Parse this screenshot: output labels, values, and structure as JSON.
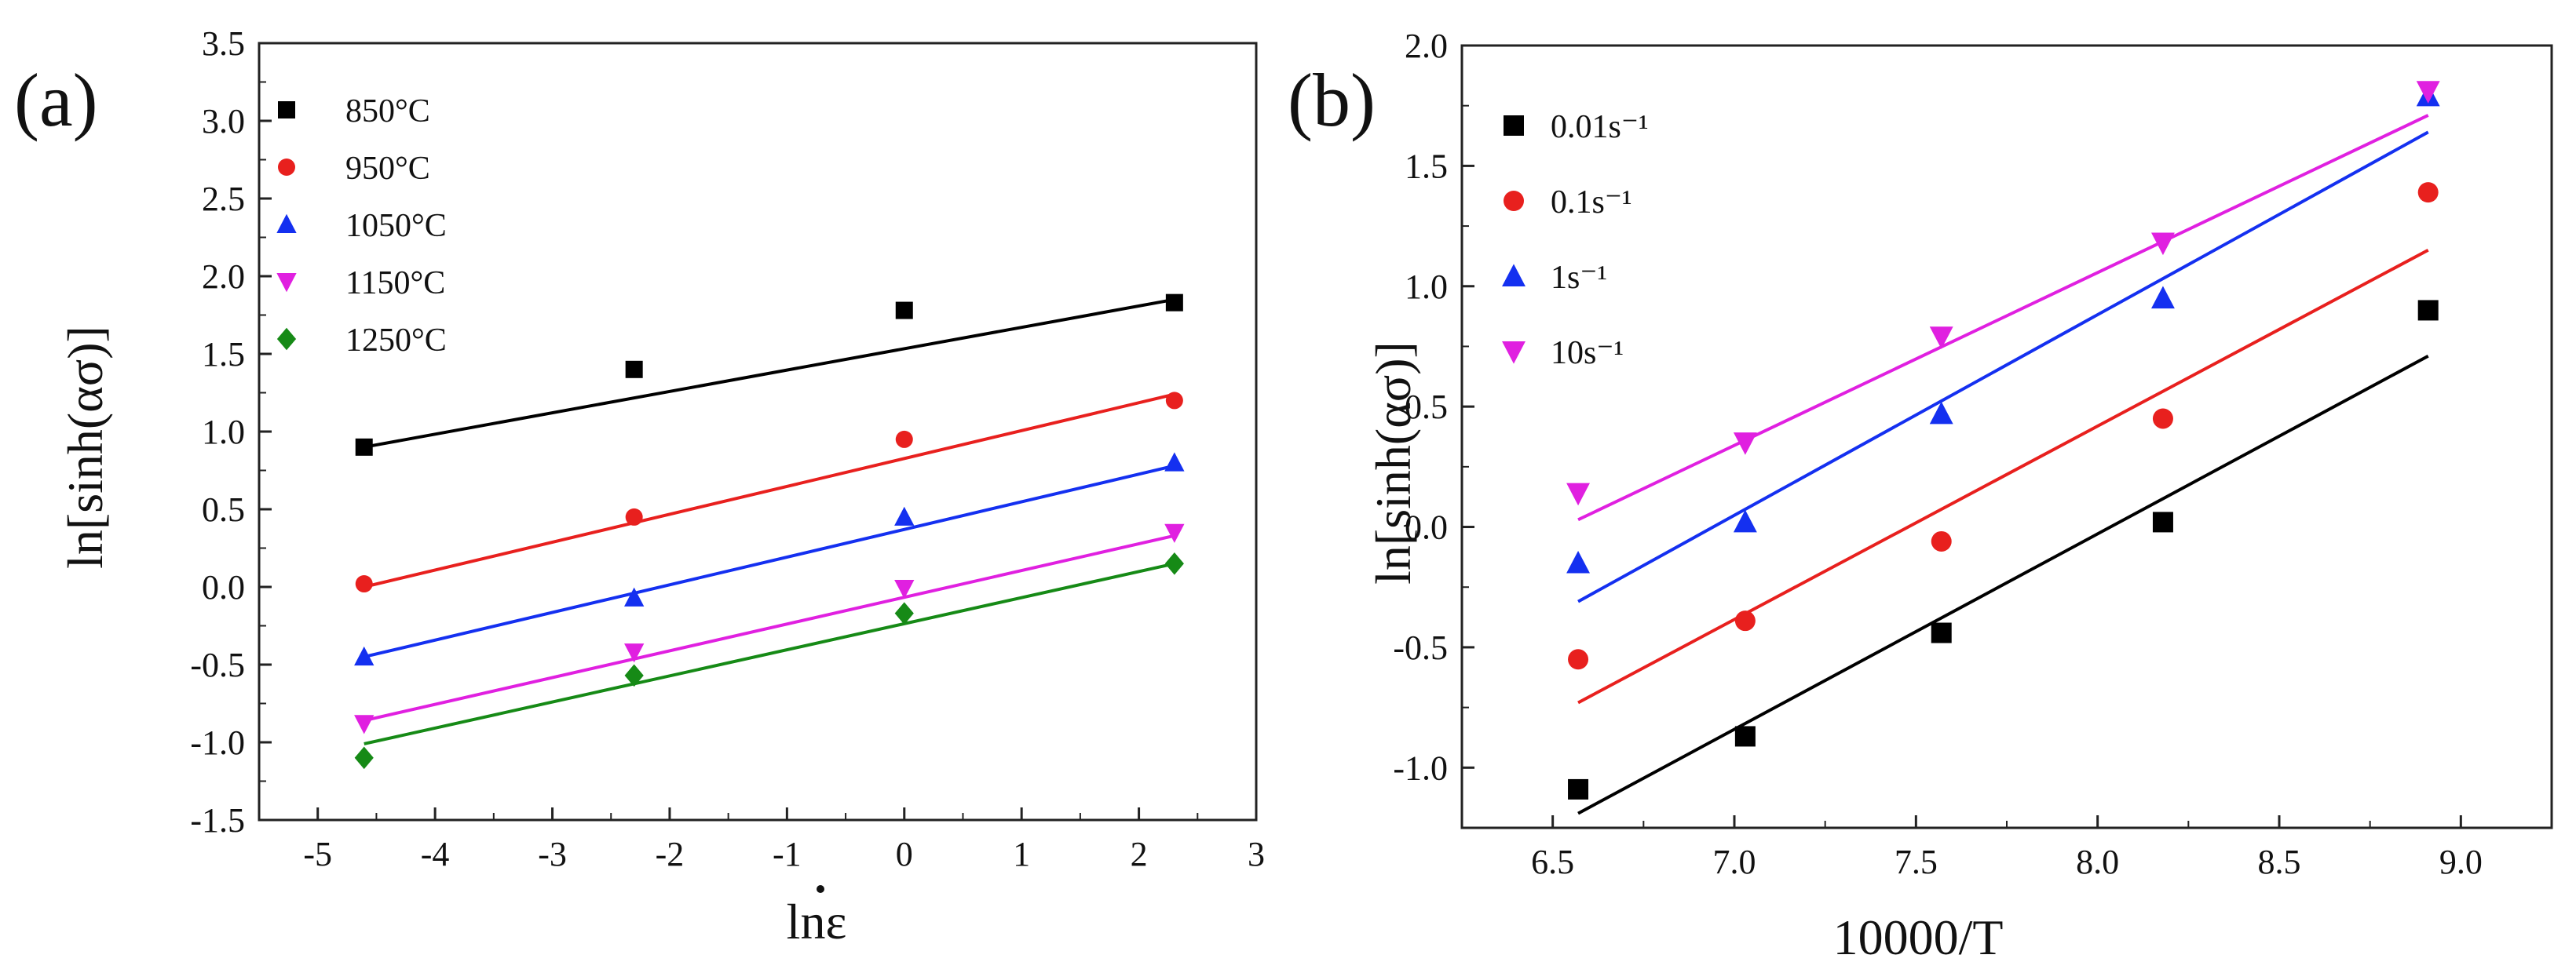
{
  "chart_data": [
    {
      "type": "scatter",
      "panel_label": "(a)",
      "xlabel": "lnε",
      "ylabel": "ln[sinh(ασ)]",
      "xlim": [
        -5.5,
        3
      ],
      "ylim": [
        -1.5,
        3.5
      ],
      "xticks": [
        -5,
        -4,
        -3,
        -2,
        -1,
        0,
        1,
        2,
        3
      ],
      "yticks": [
        -1.5,
        -1.0,
        -0.5,
        0.0,
        0.5,
        1.0,
        1.5,
        2.0,
        2.5,
        3.0,
        3.5
      ],
      "xtick_labels": [
        "-5",
        "-4",
        "-3",
        "-2",
        "-1",
        "0",
        "1",
        "2",
        "3"
      ],
      "ytick_labels": [
        "-1.5",
        "-1.0",
        "-0.5",
        "0.0",
        "0.5",
        "1.0",
        "1.5",
        "2.0",
        "2.5",
        "3.0",
        "3.5"
      ],
      "legend_position": "top-left",
      "x": [
        -4.605,
        -2.303,
        0,
        2.303
      ],
      "series": [
        {
          "name": "850°C",
          "color": "#000000",
          "marker": "square",
          "values": [
            0.9,
            1.4,
            1.78,
            1.83
          ],
          "fit": [
            0.9,
            1.85
          ]
        },
        {
          "name": "950°C",
          "color": "#e8201e",
          "marker": "circle",
          "values": [
            0.02,
            0.45,
            0.95,
            1.2
          ],
          "fit": [
            0.0,
            1.24
          ]
        },
        {
          "name": "1050°C",
          "color": "#1430f0",
          "marker": "triangle-up",
          "values": [
            -0.45,
            -0.07,
            0.45,
            0.8
          ],
          "fit": [
            -0.45,
            0.78
          ]
        },
        {
          "name": "1150°C",
          "color": "#e020e0",
          "marker": "triangle-down",
          "values": [
            -0.88,
            -0.42,
            -0.01,
            0.35
          ],
          "fit": [
            -0.86,
            0.33
          ]
        },
        {
          "name": "1250°C",
          "color": "#168a16",
          "marker": "diamond",
          "values": [
            -1.1,
            -0.57,
            -0.17,
            0.15
          ],
          "fit": [
            -1.01,
            0.15
          ]
        }
      ]
    },
    {
      "type": "scatter",
      "panel_label": "(b)",
      "xlabel": "10000/T",
      "ylabel": "ln[sinh(ασ)]",
      "xlim": [
        6.25,
        9.25
      ],
      "ylim": [
        -1.25,
        2.0
      ],
      "xticks": [
        6.5,
        7.0,
        7.5,
        8.0,
        8.5,
        9.0
      ],
      "yticks": [
        -1.0,
        -0.5,
        0.0,
        0.5,
        1.0,
        1.5,
        2.0
      ],
      "xtick_labels": [
        "6.5",
        "7.0",
        "7.5",
        "8.0",
        "8.5",
        "9.0"
      ],
      "ytick_labels": [
        "-1.0",
        "-0.5",
        "0.0",
        "0.5",
        "1.0",
        "1.5",
        "2.0"
      ],
      "legend_position": "top-left",
      "x": [
        6.57,
        7.03,
        7.57,
        8.18,
        8.91
      ],
      "series": [
        {
          "name": "0.01s⁻¹",
          "color": "#000000",
          "marker": "square",
          "values": [
            -1.09,
            -0.87,
            -0.44,
            0.02,
            0.9
          ],
          "fit": [
            -1.19,
            0.71
          ]
        },
        {
          "name": "0.1s⁻¹",
          "color": "#e8201e",
          "marker": "circle",
          "values": [
            -0.55,
            -0.39,
            -0.06,
            0.45,
            1.39
          ],
          "fit": [
            -0.73,
            1.15
          ]
        },
        {
          "name": "1s⁻¹",
          "color": "#1430f0",
          "marker": "triangle-up",
          "values": [
            -0.15,
            0.02,
            0.47,
            0.95,
            1.79
          ],
          "fit": [
            -0.31,
            1.64
          ]
        },
        {
          "name": "10s⁻¹",
          "color": "#e020e0",
          "marker": "triangle-down",
          "values": [
            0.14,
            0.35,
            0.79,
            1.18,
            1.81
          ],
          "fit": [
            0.03,
            1.71
          ]
        }
      ]
    }
  ]
}
